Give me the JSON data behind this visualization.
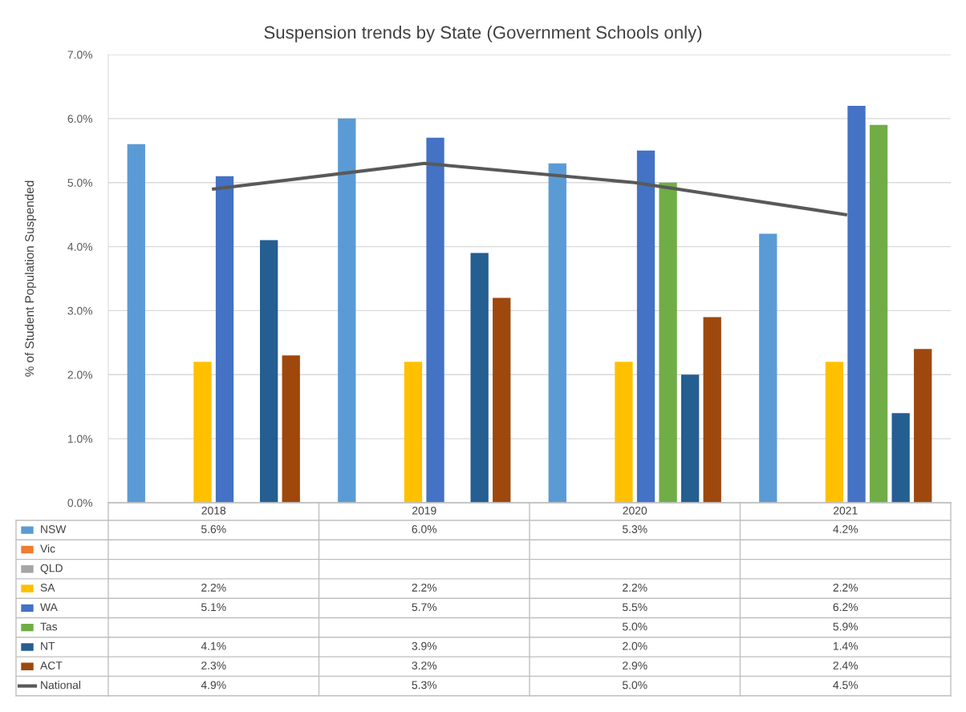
{
  "chart_data": {
    "type": "bar",
    "title": "Suspension trends by State (Government Schools only)",
    "ylabel": "% of Student Population Suspended",
    "categories": [
      "2018",
      "2019",
      "2020",
      "2021"
    ],
    "series": [
      {
        "name": "NSW",
        "color": "#5b9bd5",
        "values": [
          5.6,
          6.0,
          5.3,
          4.2
        ],
        "value_labels": [
          "5.6%",
          "6.0%",
          "5.3%",
          "4.2%"
        ]
      },
      {
        "name": "Vic",
        "color": "#ed7d31",
        "values": [
          null,
          null,
          null,
          null
        ],
        "value_labels": [
          null,
          null,
          null,
          null
        ]
      },
      {
        "name": "QLD",
        "color": "#a5a5a5",
        "values": [
          null,
          null,
          null,
          null
        ],
        "value_labels": [
          null,
          null,
          null,
          null
        ]
      },
      {
        "name": "SA",
        "color": "#ffc000",
        "values": [
          2.2,
          2.2,
          2.2,
          2.2
        ],
        "value_labels": [
          "2.2%",
          "2.2%",
          "2.2%",
          "2.2%"
        ]
      },
      {
        "name": "WA",
        "color": "#4472c4",
        "values": [
          5.1,
          5.7,
          5.5,
          6.2
        ],
        "value_labels": [
          "5.1%",
          "5.7%",
          "5.5%",
          "6.2%"
        ]
      },
      {
        "name": "Tas",
        "color": "#70ad47",
        "values": [
          null,
          null,
          5.0,
          5.9
        ],
        "value_labels": [
          null,
          null,
          "5.0%",
          "5.9%"
        ]
      },
      {
        "name": "NT",
        "color": "#255e91",
        "values": [
          4.1,
          3.9,
          2.0,
          1.4
        ],
        "value_labels": [
          "4.1%",
          "3.9%",
          "2.0%",
          "1.4%"
        ]
      },
      {
        "name": "ACT",
        "color": "#9e480e",
        "values": [
          2.3,
          3.2,
          2.9,
          2.4
        ],
        "value_labels": [
          "2.3%",
          "3.2%",
          "2.9%",
          "2.4%"
        ]
      },
      {
        "name": "National",
        "type": "line",
        "color": "#595959",
        "values": [
          4.9,
          5.3,
          5.0,
          4.5
        ],
        "value_labels": [
          "4.9%",
          "5.3%",
          "5.0%",
          "4.5%"
        ]
      }
    ],
    "ylim": [
      0,
      7
    ],
    "yticks": [
      {
        "value": 0,
        "label": "0.0%"
      },
      {
        "value": 1,
        "label": "1.0%"
      },
      {
        "value": 2,
        "label": "2.0%"
      },
      {
        "value": 3,
        "label": "3.0%"
      },
      {
        "value": 4,
        "label": "4.0%"
      },
      {
        "value": 5,
        "label": "5.0%"
      },
      {
        "value": 6,
        "label": "6.0%"
      },
      {
        "value": 7,
        "label": "7.0%"
      }
    ],
    "grid": "y",
    "legend": "bottom left",
    "marker": "none",
    "line_style": "solid"
  }
}
